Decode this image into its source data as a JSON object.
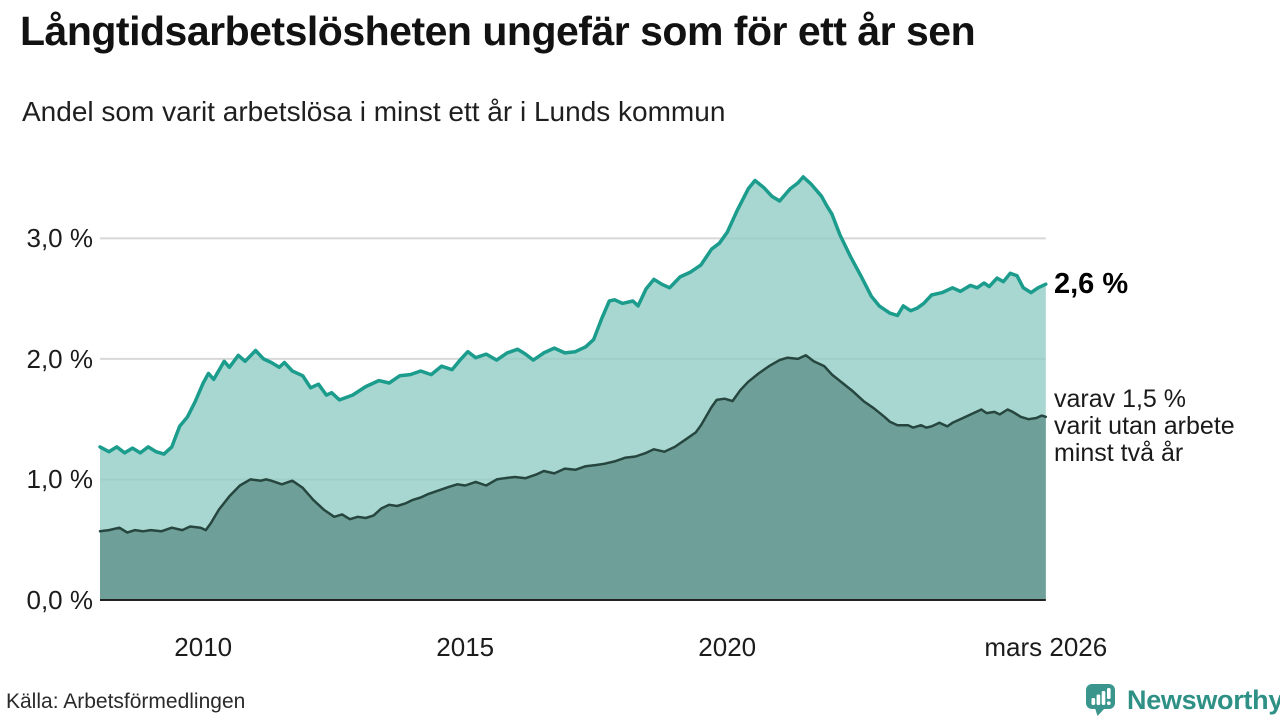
{
  "header": {
    "title": "Långtidsarbetslösheten ungefär som för ett år sen",
    "subtitle": "Andel som varit arbetslösa i minst ett år i Lunds kommun"
  },
  "annotations": {
    "latest_total": "2,6 %",
    "secondary_line1": "varav 1,5 %",
    "secondary_line2": "varit utan arbete",
    "secondary_line3": "minst två år"
  },
  "footer": {
    "source": "Källa: Arbetsförmedlingen",
    "brand": "Newsworthy"
  },
  "colors": {
    "total_line": "#1b9c8c",
    "total_fill": "rgba(146,205,197,0.8)",
    "two_year_line": "#26463f",
    "two_year_fill": "rgba(100,151,143,0.85)",
    "gridline": "#d8d8d8",
    "axis_line": "#222222",
    "logo_teal": "#3a968c"
  },
  "chart_data": {
    "type": "area",
    "title": "Långtidsarbetslösheten ungefär som för ett år sen",
    "subtitle": "Andel som varit arbetslösa i minst ett år i Lunds kommun",
    "unit": "%",
    "x_axis": {
      "range": [
        2008.03,
        2026.08
      ],
      "ticks": [
        {
          "t": 2010,
          "label": "2010"
        },
        {
          "t": 2015,
          "label": "2015"
        },
        {
          "t": 2020,
          "label": "2020"
        },
        {
          "t": 2026.08,
          "label": "mars 2026"
        }
      ]
    },
    "y_axis": {
      "range": [
        0,
        3.6
      ],
      "gridline_values": [
        1,
        2,
        3
      ],
      "ticks": [
        {
          "v": 0,
          "label": "0,0 %"
        },
        {
          "v": 1,
          "label": "1,0 %"
        },
        {
          "v": 2,
          "label": "2,0 %"
        },
        {
          "v": 3,
          "label": "3,0 %"
        }
      ]
    },
    "series": [
      {
        "name": "Andel arbetslösa minst ett år",
        "end_label": "2,6 %",
        "end_value": 2.6,
        "points": [
          [
            2008.03,
            1.27
          ],
          [
            2008.2,
            1.23
          ],
          [
            2008.35,
            1.27
          ],
          [
            2008.5,
            1.22
          ],
          [
            2008.65,
            1.26
          ],
          [
            2008.8,
            1.22
          ],
          [
            2008.95,
            1.27
          ],
          [
            2009.1,
            1.23
          ],
          [
            2009.25,
            1.21
          ],
          [
            2009.4,
            1.27
          ],
          [
            2009.55,
            1.44
          ],
          [
            2009.7,
            1.52
          ],
          [
            2009.85,
            1.65
          ],
          [
            2010.0,
            1.8
          ],
          [
            2010.1,
            1.88
          ],
          [
            2010.2,
            1.83
          ],
          [
            2010.4,
            1.98
          ],
          [
            2010.5,
            1.93
          ],
          [
            2010.67,
            2.03
          ],
          [
            2010.8,
            1.98
          ],
          [
            2011.0,
            2.07
          ],
          [
            2011.15,
            2.0
          ],
          [
            2011.3,
            1.97
          ],
          [
            2011.45,
            1.93
          ],
          [
            2011.55,
            1.97
          ],
          [
            2011.7,
            1.9
          ],
          [
            2011.9,
            1.86
          ],
          [
            2012.05,
            1.76
          ],
          [
            2012.2,
            1.79
          ],
          [
            2012.35,
            1.7
          ],
          [
            2012.45,
            1.72
          ],
          [
            2012.6,
            1.66
          ],
          [
            2012.85,
            1.7
          ],
          [
            2013.1,
            1.77
          ],
          [
            2013.35,
            1.82
          ],
          [
            2013.55,
            1.8
          ],
          [
            2013.75,
            1.86
          ],
          [
            2013.95,
            1.87
          ],
          [
            2014.15,
            1.9
          ],
          [
            2014.35,
            1.87
          ],
          [
            2014.55,
            1.94
          ],
          [
            2014.75,
            1.91
          ],
          [
            2014.9,
            1.99
          ],
          [
            2015.05,
            2.06
          ],
          [
            2015.2,
            2.01
          ],
          [
            2015.4,
            2.04
          ],
          [
            2015.6,
            1.99
          ],
          [
            2015.8,
            2.05
          ],
          [
            2016.0,
            2.08
          ],
          [
            2016.15,
            2.04
          ],
          [
            2016.3,
            1.99
          ],
          [
            2016.5,
            2.05
          ],
          [
            2016.7,
            2.09
          ],
          [
            2016.9,
            2.05
          ],
          [
            2017.1,
            2.06
          ],
          [
            2017.3,
            2.1
          ],
          [
            2017.45,
            2.16
          ],
          [
            2017.6,
            2.33
          ],
          [
            2017.75,
            2.48
          ],
          [
            2017.85,
            2.49
          ],
          [
            2018.0,
            2.46
          ],
          [
            2018.2,
            2.48
          ],
          [
            2018.3,
            2.44
          ],
          [
            2018.45,
            2.58
          ],
          [
            2018.6,
            2.66
          ],
          [
            2018.75,
            2.62
          ],
          [
            2018.9,
            2.59
          ],
          [
            2019.1,
            2.68
          ],
          [
            2019.3,
            2.72
          ],
          [
            2019.5,
            2.78
          ],
          [
            2019.7,
            2.91
          ],
          [
            2019.85,
            2.96
          ],
          [
            2020.0,
            3.05
          ],
          [
            2020.2,
            3.24
          ],
          [
            2020.4,
            3.41
          ],
          [
            2020.53,
            3.48
          ],
          [
            2020.7,
            3.42
          ],
          [
            2020.85,
            3.35
          ],
          [
            2021.0,
            3.31
          ],
          [
            2021.2,
            3.41
          ],
          [
            2021.35,
            3.46
          ],
          [
            2021.45,
            3.51
          ],
          [
            2021.6,
            3.45
          ],
          [
            2021.8,
            3.35
          ],
          [
            2021.9,
            3.27
          ],
          [
            2022.0,
            3.2
          ],
          [
            2022.15,
            3.03
          ],
          [
            2022.35,
            2.85
          ],
          [
            2022.55,
            2.69
          ],
          [
            2022.75,
            2.52
          ],
          [
            2022.9,
            2.44
          ],
          [
            2023.1,
            2.38
          ],
          [
            2023.25,
            2.36
          ],
          [
            2023.36,
            2.44
          ],
          [
            2023.5,
            2.4
          ],
          [
            2023.62,
            2.42
          ],
          [
            2023.75,
            2.46
          ],
          [
            2023.9,
            2.53
          ],
          [
            2024.1,
            2.55
          ],
          [
            2024.3,
            2.59
          ],
          [
            2024.45,
            2.56
          ],
          [
            2024.64,
            2.61
          ],
          [
            2024.77,
            2.59
          ],
          [
            2024.9,
            2.63
          ],
          [
            2025.0,
            2.6
          ],
          [
            2025.15,
            2.67
          ],
          [
            2025.27,
            2.64
          ],
          [
            2025.4,
            2.71
          ],
          [
            2025.53,
            2.69
          ],
          [
            2025.65,
            2.59
          ],
          [
            2025.8,
            2.55
          ],
          [
            2025.93,
            2.59
          ],
          [
            2026.08,
            2.62
          ]
        ]
      },
      {
        "name": "varav utan arbete minst två år",
        "end_label": "varav 1,5 % varit utan arbete minst två år",
        "end_value": 1.5,
        "points": [
          [
            2008.03,
            0.57
          ],
          [
            2008.2,
            0.58
          ],
          [
            2008.4,
            0.6
          ],
          [
            2008.55,
            0.56
          ],
          [
            2008.7,
            0.58
          ],
          [
            2008.85,
            0.57
          ],
          [
            2009.0,
            0.58
          ],
          [
            2009.2,
            0.57
          ],
          [
            2009.4,
            0.6
          ],
          [
            2009.6,
            0.58
          ],
          [
            2009.75,
            0.61
          ],
          [
            2009.95,
            0.6
          ],
          [
            2010.05,
            0.58
          ],
          [
            2010.15,
            0.64
          ],
          [
            2010.3,
            0.75
          ],
          [
            2010.5,
            0.86
          ],
          [
            2010.7,
            0.95
          ],
          [
            2010.9,
            1.0
          ],
          [
            2011.1,
            0.99
          ],
          [
            2011.2,
            1.0
          ],
          [
            2011.3,
            0.99
          ],
          [
            2011.5,
            0.96
          ],
          [
            2011.7,
            0.99
          ],
          [
            2011.9,
            0.93
          ],
          [
            2012.1,
            0.83
          ],
          [
            2012.3,
            0.75
          ],
          [
            2012.5,
            0.69
          ],
          [
            2012.65,
            0.71
          ],
          [
            2012.8,
            0.67
          ],
          [
            2012.95,
            0.69
          ],
          [
            2013.1,
            0.68
          ],
          [
            2013.25,
            0.7
          ],
          [
            2013.4,
            0.76
          ],
          [
            2013.55,
            0.79
          ],
          [
            2013.7,
            0.78
          ],
          [
            2013.85,
            0.8
          ],
          [
            2014.0,
            0.83
          ],
          [
            2014.15,
            0.85
          ],
          [
            2014.3,
            0.88
          ],
          [
            2014.5,
            0.91
          ],
          [
            2014.7,
            0.94
          ],
          [
            2014.85,
            0.96
          ],
          [
            2015.0,
            0.95
          ],
          [
            2015.2,
            0.98
          ],
          [
            2015.4,
            0.95
          ],
          [
            2015.6,
            1.0
          ],
          [
            2015.75,
            1.01
          ],
          [
            2015.95,
            1.02
          ],
          [
            2016.15,
            1.01
          ],
          [
            2016.35,
            1.04
          ],
          [
            2016.5,
            1.07
          ],
          [
            2016.7,
            1.05
          ],
          [
            2016.9,
            1.09
          ],
          [
            2017.1,
            1.08
          ],
          [
            2017.3,
            1.11
          ],
          [
            2017.5,
            1.12
          ],
          [
            2017.65,
            1.13
          ],
          [
            2017.85,
            1.15
          ],
          [
            2018.05,
            1.18
          ],
          [
            2018.25,
            1.19
          ],
          [
            2018.45,
            1.22
          ],
          [
            2018.6,
            1.25
          ],
          [
            2018.8,
            1.23
          ],
          [
            2019.0,
            1.27
          ],
          [
            2019.2,
            1.33
          ],
          [
            2019.4,
            1.39
          ],
          [
            2019.5,
            1.45
          ],
          [
            2019.7,
            1.6
          ],
          [
            2019.8,
            1.66
          ],
          [
            2019.95,
            1.67
          ],
          [
            2020.1,
            1.65
          ],
          [
            2020.25,
            1.74
          ],
          [
            2020.4,
            1.81
          ],
          [
            2020.6,
            1.88
          ],
          [
            2020.8,
            1.94
          ],
          [
            2021.0,
            1.99
          ],
          [
            2021.15,
            2.01
          ],
          [
            2021.35,
            2.0
          ],
          [
            2021.5,
            2.03
          ],
          [
            2021.65,
            1.98
          ],
          [
            2021.85,
            1.94
          ],
          [
            2022.0,
            1.87
          ],
          [
            2022.2,
            1.8
          ],
          [
            2022.4,
            1.73
          ],
          [
            2022.6,
            1.65
          ],
          [
            2022.8,
            1.59
          ],
          [
            2023.0,
            1.52
          ],
          [
            2023.1,
            1.48
          ],
          [
            2023.25,
            1.45
          ],
          [
            2023.45,
            1.45
          ],
          [
            2023.55,
            1.43
          ],
          [
            2023.7,
            1.45
          ],
          [
            2023.8,
            1.43
          ],
          [
            2023.9,
            1.44
          ],
          [
            2024.05,
            1.47
          ],
          [
            2024.2,
            1.44
          ],
          [
            2024.3,
            1.47
          ],
          [
            2024.5,
            1.51
          ],
          [
            2024.7,
            1.55
          ],
          [
            2024.85,
            1.58
          ],
          [
            2024.95,
            1.55
          ],
          [
            2025.1,
            1.56
          ],
          [
            2025.2,
            1.54
          ],
          [
            2025.35,
            1.58
          ],
          [
            2025.45,
            1.56
          ],
          [
            2025.6,
            1.52
          ],
          [
            2025.75,
            1.5
          ],
          [
            2025.9,
            1.51
          ],
          [
            2026.0,
            1.53
          ],
          [
            2026.08,
            1.52
          ]
        ]
      }
    ]
  }
}
